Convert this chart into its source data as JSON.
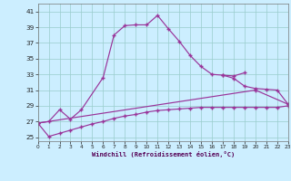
{
  "xlabel": "Windchill (Refroidissement éolien,°C)",
  "bg_color": "#cceeff",
  "grid_color": "#99cccc",
  "line_color": "#993399",
  "line1_x": [
    0,
    1,
    2,
    3,
    4,
    6,
    7,
    8,
    9,
    10,
    11,
    12,
    13,
    14,
    15,
    16,
    17,
    18,
    19
  ],
  "line1_y": [
    26.8,
    27.0,
    28.5,
    27.3,
    28.5,
    32.6,
    38.0,
    39.2,
    39.3,
    39.3,
    40.5,
    38.8,
    37.2,
    35.4,
    34.0,
    33.0,
    32.9,
    32.8,
    33.2
  ],
  "line2_x": [
    17,
    18,
    19,
    20,
    21,
    22,
    23
  ],
  "line2_y": [
    32.9,
    32.5,
    31.5,
    31.2,
    31.1,
    31.0,
    29.2
  ],
  "line3_x": [
    0,
    20,
    23
  ],
  "line3_y": [
    26.8,
    31.0,
    29.2
  ],
  "line4_x": [
    0,
    1,
    2,
    3,
    4,
    5,
    6,
    7,
    8,
    9,
    10,
    11,
    12,
    13,
    14,
    15,
    16,
    17,
    18,
    19,
    20,
    21,
    22,
    23
  ],
  "line4_y": [
    26.8,
    25.1,
    25.5,
    25.9,
    26.3,
    26.7,
    27.0,
    27.4,
    27.7,
    27.9,
    28.2,
    28.4,
    28.5,
    28.6,
    28.7,
    28.8,
    28.8,
    28.8,
    28.8,
    28.8,
    28.8,
    28.8,
    28.8,
    29.0
  ],
  "ylim": [
    24.5,
    42.0
  ],
  "xlim": [
    0,
    23
  ],
  "yticks": [
    25,
    27,
    29,
    31,
    33,
    35,
    37,
    39,
    41
  ],
  "xtick_labels": [
    "0",
    "1",
    "2",
    "3",
    "4",
    "5",
    "6",
    "7",
    "8",
    "9",
    "10",
    "11",
    "12",
    "13",
    "14",
    "15",
    "16",
    "17",
    "18",
    "19",
    "20",
    "21",
    "22",
    "23"
  ]
}
